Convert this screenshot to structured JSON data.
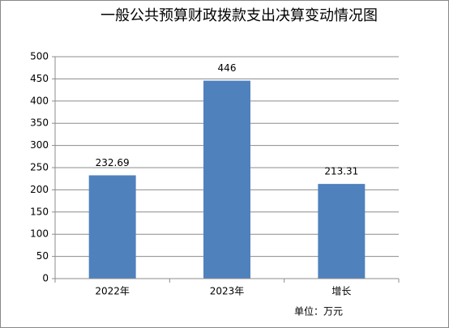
{
  "chart_data": {
    "type": "bar",
    "title": "一般公共预算财政拨款支出决算变动情况图",
    "categories": [
      "2022年",
      "2023年",
      "增长"
    ],
    "values": [
      232.69,
      446,
      213.31
    ],
    "color": "#4f81bd",
    "ylim": [
      0,
      500
    ],
    "yticks": [
      0,
      50,
      100,
      150,
      200,
      250,
      300,
      350,
      400,
      450,
      500
    ],
    "grid": true,
    "note": "单位：万元"
  }
}
